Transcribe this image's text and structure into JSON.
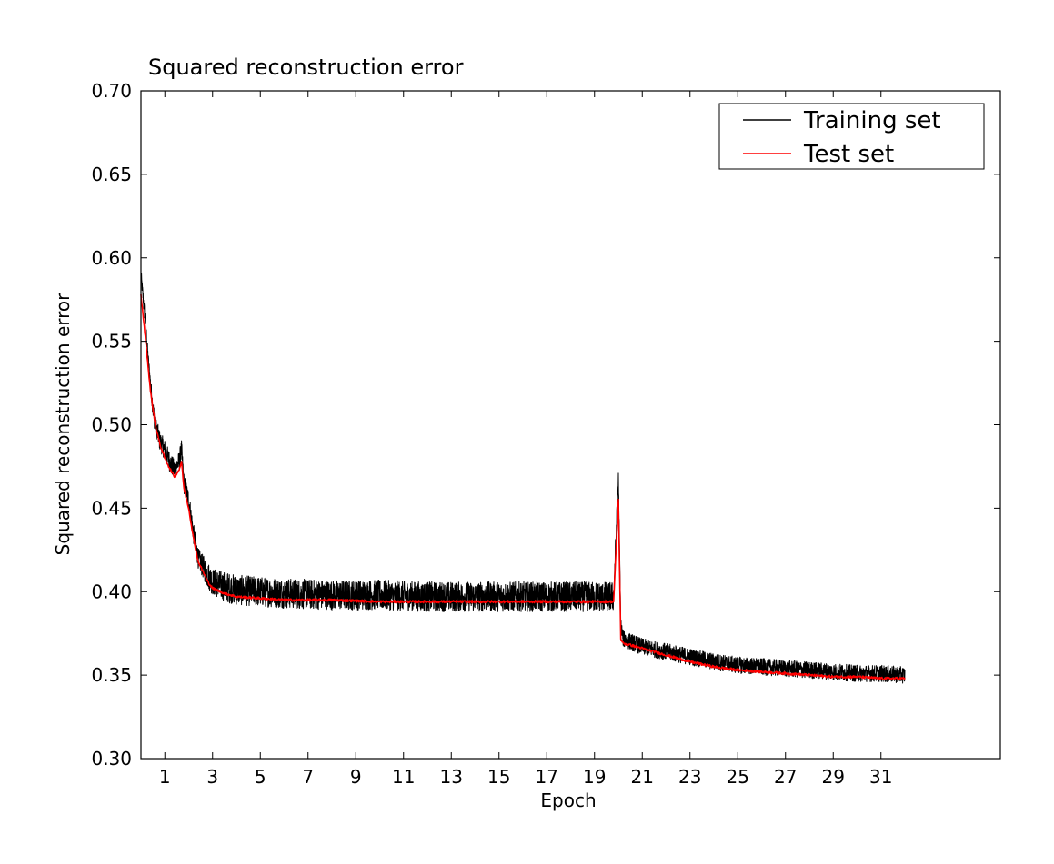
{
  "chart_data": {
    "type": "line",
    "title": "Squared reconstruction error",
    "xlabel": "Epoch",
    "ylabel": "Squared reconstruction error",
    "xlim": [
      0,
      36
    ],
    "ylim": [
      0.3,
      0.7
    ],
    "xticks": [
      1,
      3,
      5,
      7,
      9,
      11,
      13,
      15,
      17,
      19,
      21,
      23,
      25,
      27,
      29,
      31
    ],
    "yticks": [
      0.3,
      0.35,
      0.4,
      0.45,
      0.5,
      0.55,
      0.6,
      0.65,
      0.7
    ],
    "grid": false,
    "legend_position": "top-right",
    "series": [
      {
        "name": "Training set",
        "color": "#000000",
        "x": [
          0.0,
          0.1,
          0.2,
          0.3,
          0.4,
          0.5,
          0.6,
          0.8,
          1.0,
          1.2,
          1.4,
          1.6,
          1.7,
          1.8,
          2.0,
          2.2,
          2.4,
          2.6,
          2.8,
          3.0,
          3.5,
          4.0,
          5.0,
          6.0,
          8.0,
          10.0,
          12.0,
          14.0,
          16.0,
          18.0,
          19.0,
          19.8,
          20.0,
          20.1,
          20.2,
          20.5,
          21.0,
          22.0,
          23.0,
          24.0,
          25.0,
          26.0,
          27.0,
          28.0,
          29.0,
          30.0,
          31.0,
          32.0
        ],
        "values": [
          0.59,
          0.575,
          0.56,
          0.54,
          0.525,
          0.51,
          0.5,
          0.49,
          0.485,
          0.478,
          0.473,
          0.478,
          0.485,
          0.465,
          0.455,
          0.435,
          0.42,
          0.415,
          0.41,
          0.406,
          0.403,
          0.401,
          0.4,
          0.399,
          0.398,
          0.398,
          0.397,
          0.397,
          0.397,
          0.397,
          0.397,
          0.397,
          0.468,
          0.38,
          0.372,
          0.37,
          0.367,
          0.364,
          0.361,
          0.358,
          0.356,
          0.355,
          0.354,
          0.353,
          0.352,
          0.351,
          0.351,
          0.35
        ],
        "noise_amplitude": [
          0.004,
          0.004,
          0.004,
          0.004,
          0.004,
          0.006,
          0.006,
          0.006,
          0.006,
          0.006,
          0.006,
          0.006,
          0.006,
          0.006,
          0.006,
          0.006,
          0.006,
          0.007,
          0.008,
          0.008,
          0.009,
          0.009,
          0.009,
          0.009,
          0.009,
          0.009,
          0.009,
          0.009,
          0.009,
          0.009,
          0.009,
          0.009,
          0.004,
          0.005,
          0.005,
          0.005,
          0.005,
          0.005,
          0.005,
          0.005,
          0.005,
          0.005,
          0.005,
          0.005,
          0.005,
          0.005,
          0.005,
          0.005
        ]
      },
      {
        "name": "Test set",
        "color": "#ff0000",
        "x": [
          0.0,
          0.2,
          0.4,
          0.6,
          0.8,
          1.0,
          1.2,
          1.4,
          1.6,
          1.7,
          1.8,
          2.0,
          2.2,
          2.4,
          2.6,
          2.8,
          3.0,
          3.5,
          4.0,
          5.0,
          6.0,
          8.0,
          10.0,
          12.0,
          14.0,
          16.0,
          18.0,
          19.0,
          19.8,
          20.0,
          20.1,
          20.2,
          20.5,
          21.0,
          22.0,
          23.0,
          24.0,
          25.0,
          26.0,
          27.0,
          28.0,
          29.0,
          30.0,
          31.0,
          32.0
        ],
        "values": [
          0.578,
          0.55,
          0.52,
          0.5,
          0.488,
          0.48,
          0.474,
          0.469,
          0.473,
          0.478,
          0.462,
          0.45,
          0.432,
          0.418,
          0.412,
          0.406,
          0.402,
          0.399,
          0.397,
          0.396,
          0.395,
          0.395,
          0.394,
          0.394,
          0.394,
          0.394,
          0.394,
          0.394,
          0.394,
          0.455,
          0.372,
          0.369,
          0.368,
          0.366,
          0.362,
          0.358,
          0.355,
          0.353,
          0.352,
          0.351,
          0.35,
          0.349,
          0.349,
          0.348,
          0.348
        ]
      }
    ]
  }
}
